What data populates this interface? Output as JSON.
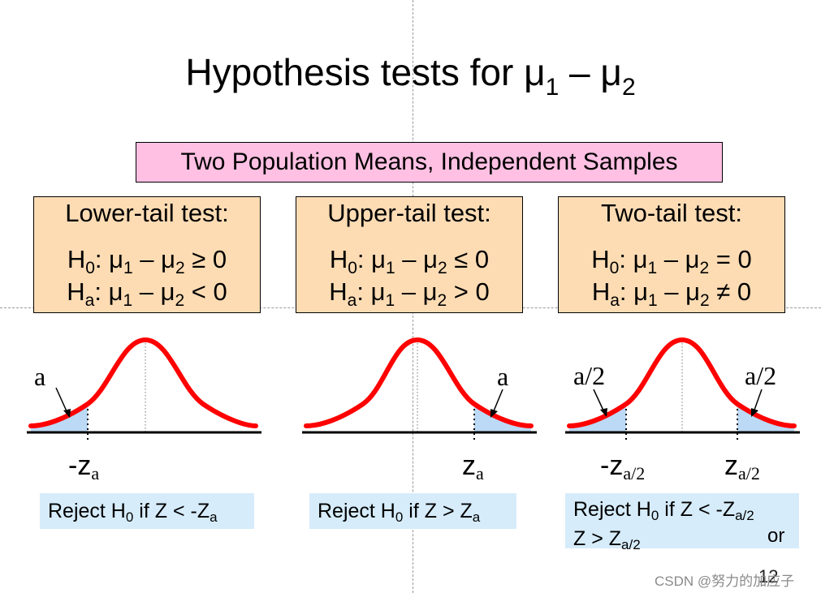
{
  "slide": {
    "title": {
      "main": "Hypothesis tests for μ",
      "sub1": "1",
      "dash": " – μ",
      "sub2": "2"
    },
    "subtitle": "Two Population Means, Independent Samples",
    "panels": [
      {
        "heading": "Lower-tail test:",
        "h0": {
          "H": "H",
          "sub": "0",
          "a": ": μ",
          "s1": "1",
          "b": " – μ",
          "s2": "2",
          "rel": " ≥  0"
        },
        "ha": {
          "H": "H",
          "sub": "a",
          "a": ": μ",
          "s1": "1",
          "b": " – μ",
          "s2": "2",
          "rel": " < 0"
        },
        "alpha_label": "a",
        "z_label": {
          "pre": "-z",
          "sub": "a"
        },
        "reject": {
          "l1": "Reject H",
          "sub0": "0",
          "l2": " if Z < -Z",
          "subz": "a"
        }
      },
      {
        "heading": "Upper-tail test:",
        "h0": {
          "H": "H",
          "sub": "0",
          "a": ": μ",
          "s1": "1",
          "b": " – μ",
          "s2": "2",
          "rel": " ≤ 0"
        },
        "ha": {
          "H": "H",
          "sub": "a",
          "a": ": μ",
          "s1": "1",
          "b": " – μ",
          "s2": "2",
          "rel": " > 0"
        },
        "alpha_label": "a",
        "z_label": {
          "pre": "z",
          "sub": "a"
        },
        "reject": {
          "l1": "Reject H",
          "sub0": "0",
          "l2": " if Z > Z",
          "subz": "a"
        }
      },
      {
        "heading": "Two-tail test:",
        "h0": {
          "H": "H",
          "sub": "0",
          "a": ": μ",
          "s1": "1",
          "b": " – μ",
          "s2": "2",
          "rel": " = 0"
        },
        "ha": {
          "H": "H",
          "sub": "a",
          "a": ": μ",
          "s1": "1",
          "b": " – μ",
          "s2": "2",
          "rel": " ≠ 0"
        },
        "alpha_label_left": "a/2",
        "alpha_label_right": "a/2",
        "z_label_left": {
          "pre": "-z",
          "sub": "a/2"
        },
        "z_label_right": {
          "pre": "z",
          "sub": "a/2"
        },
        "reject": {
          "l1": "Reject H",
          "sub0": "0",
          "l2": " if Z < -Z",
          "subz": "a/2",
          "or": "or",
          "l3": "Z > Z",
          "subz2": "a/2"
        }
      }
    ],
    "page_number": "12",
    "watermark": "CSDN @努力的加应子",
    "colors": {
      "curve": "#ff0000",
      "tail_fill": "#bcd9f5",
      "test_box": "#fddcb4",
      "subtitle_box": "#ffc0e3",
      "reject_box": "#d6ecfb"
    }
  }
}
